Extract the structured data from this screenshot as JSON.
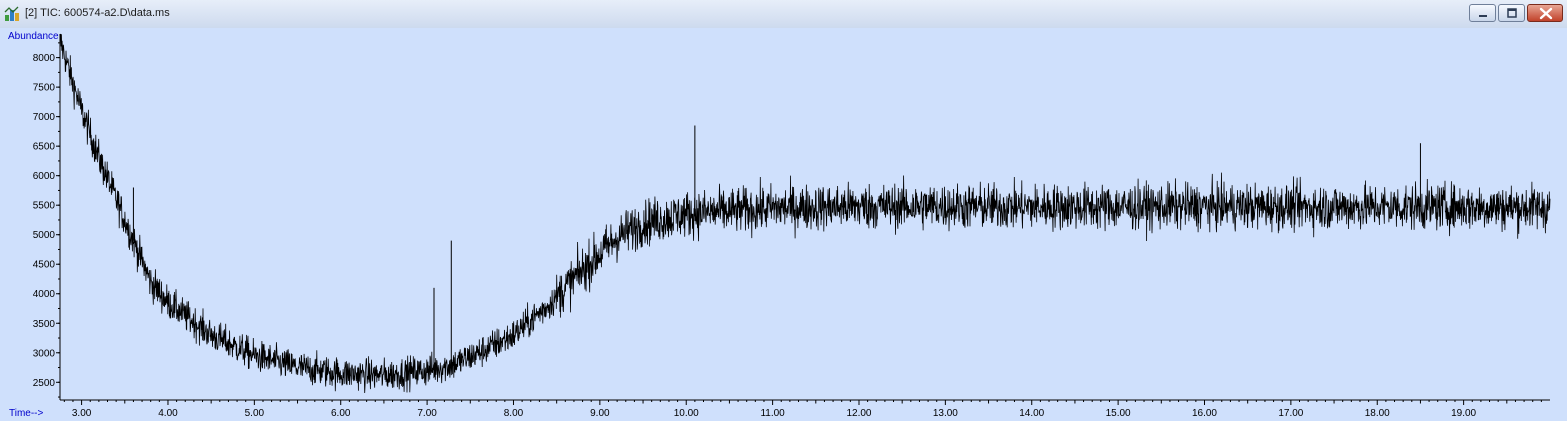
{
  "window": {
    "title": "[2] TIC: 600574-a2.D\\data.ms",
    "icons": {
      "app": "chromatogram-app-icon",
      "minimize": "minimize-icon",
      "maximize": "maximize-icon",
      "close": "close-icon"
    },
    "colors": {
      "plot_background": "#cfe0fc",
      "trace": "#000000",
      "axis_title": "#0000cc",
      "titlebar": "#d6e2f4",
      "close_button": "#c9503a"
    }
  },
  "chart_data": {
    "type": "line",
    "title": "",
    "ylabel": "Abundance",
    "xlabel": "Time-->",
    "xlim": [
      2.75,
      20.0
    ],
    "ylim": [
      2200,
      8400
    ],
    "xticks": [
      3.0,
      4.0,
      5.0,
      6.0,
      7.0,
      8.0,
      9.0,
      10.0,
      11.0,
      12.0,
      13.0,
      14.0,
      15.0,
      16.0,
      17.0,
      18.0,
      19.0
    ],
    "xtick_labels": [
      "3.00",
      "4.00",
      "5.00",
      "6.00",
      "7.00",
      "8.00",
      "9.00",
      "10.00",
      "11.00",
      "12.00",
      "13.00",
      "14.00",
      "15.00",
      "16.00",
      "17.00",
      "18.00",
      "19.00"
    ],
    "yticks": [
      2500,
      3000,
      3500,
      4000,
      4500,
      5000,
      5500,
      6000,
      6500,
      7000,
      7500,
      8000
    ],
    "ytick_labels": [
      "2500",
      "3000",
      "3500",
      "4000",
      "4500",
      "5000",
      "5500",
      "6000",
      "6500",
      "7000",
      "7500",
      "8000"
    ],
    "grid": false,
    "series": [
      {
        "name": "",
        "x": [
          2.75,
          2.85,
          3.0,
          3.2,
          3.4,
          3.6,
          3.8,
          4.0,
          4.5,
          5.0,
          5.5,
          6.0,
          6.5,
          7.0,
          7.3,
          7.6,
          8.0,
          8.4,
          8.8,
          9.2,
          9.5,
          10.0,
          11.0,
          12.0,
          13.0,
          14.0,
          15.0,
          16.0,
          17.0,
          18.0,
          19.0,
          20.0
        ],
        "y": [
          8300,
          7800,
          7100,
          6300,
          5600,
          4900,
          4200,
          3850,
          3300,
          2950,
          2750,
          2650,
          2620,
          2700,
          2800,
          3000,
          3300,
          3800,
          4400,
          4950,
          5200,
          5350,
          5450,
          5480,
          5480,
          5470,
          5470,
          5480,
          5470,
          5470,
          5470,
          5460
        ],
        "noise_amplitude": 350
      }
    ],
    "annotations": [
      {
        "x": 3.6,
        "y": 5800,
        "text": ""
      },
      {
        "x": 7.08,
        "y": 4100,
        "text": ""
      },
      {
        "x": 7.28,
        "y": 4900,
        "text": ""
      },
      {
        "x": 10.1,
        "y": 6850,
        "text": ""
      },
      {
        "x": 18.5,
        "y": 6550,
        "text": ""
      }
    ]
  }
}
